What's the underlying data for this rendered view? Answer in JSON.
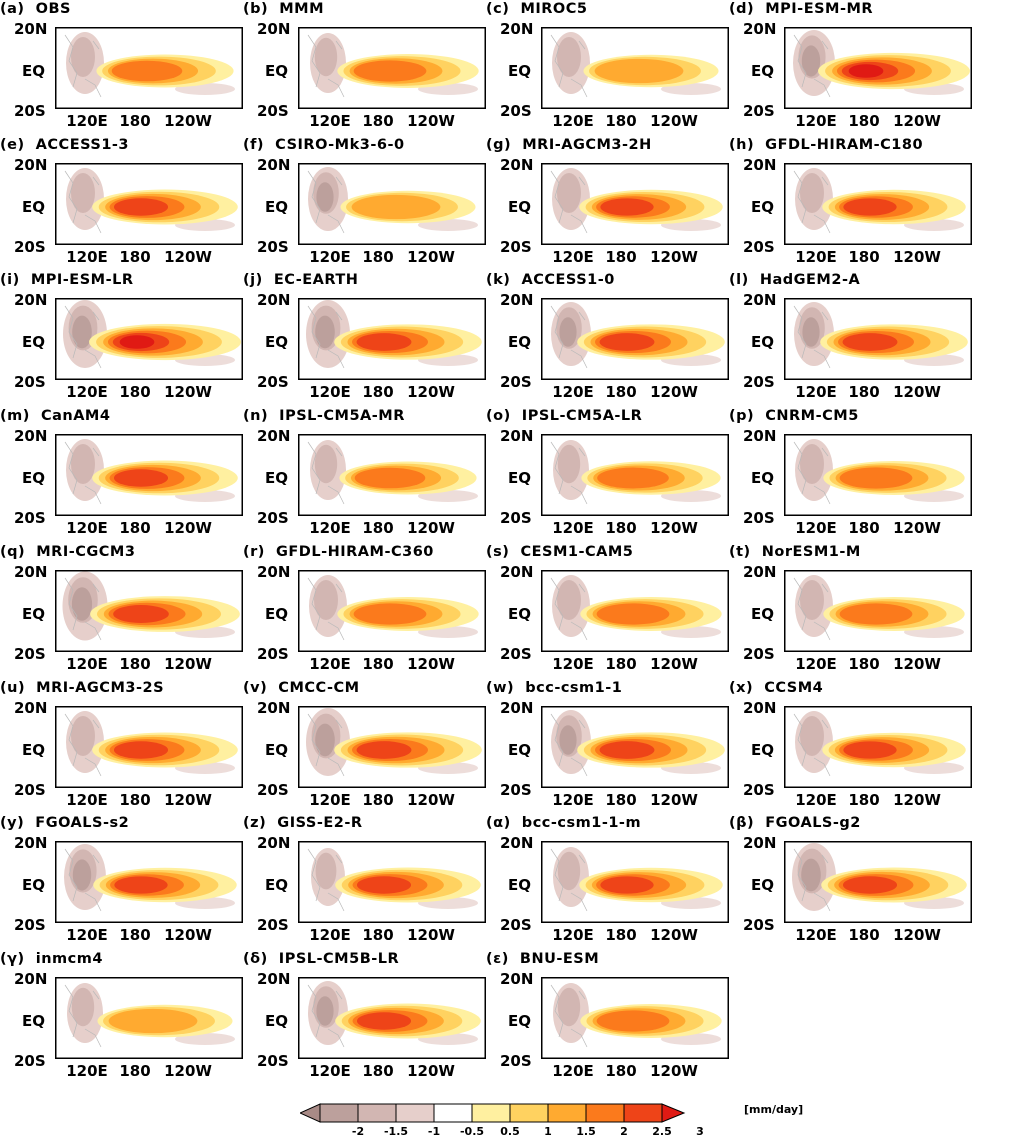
{
  "chart_data": {
    "type": "heatmap",
    "description": "Precipitation anomaly maps over tropical Pacific for observations, multi-model mean and CMIP5 AMIP models",
    "units": "[mm/day]",
    "y_axis": {
      "range": [
        "20S",
        "20N"
      ],
      "tick_labels": [
        "20N",
        "EQ",
        "20S"
      ]
    },
    "x_axis": {
      "tick_labels": [
        "120E",
        "180",
        "120W"
      ]
    },
    "colorbar": {
      "levels": [
        -2,
        -1.5,
        -1,
        -0.5,
        0.5,
        1,
        1.5,
        2,
        2.5,
        3
      ],
      "tick_labels": [
        "-2",
        "-1.5",
        "-1",
        "-0.5",
        "0.5",
        "1",
        "1.5",
        "2",
        "2.5",
        "3"
      ],
      "colors": [
        "#a88a86",
        "#bca09c",
        "#d2b6b2",
        "#e6cfcb",
        "#ffffff",
        "#fff0a0",
        "#ffd260",
        "#ffaa30",
        "#fb7a1c",
        "#ee4418",
        "#e01a14"
      ]
    },
    "panels": [
      {
        "label": "(a)",
        "name": "OBS",
        "intensity": 0.6,
        "west": 0.5
      },
      {
        "label": "(b)",
        "name": "MMM",
        "intensity": 0.7,
        "west": 0.4
      },
      {
        "label": "(c)",
        "name": "MIROC5",
        "intensity": 0.55,
        "west": 0.5
      },
      {
        "label": "(d)",
        "name": "MPI-ESM-MR",
        "intensity": 0.95,
        "west": 0.7
      },
      {
        "label": "(e)",
        "name": "ACCESS1-3",
        "intensity": 0.8,
        "west": 0.5
      },
      {
        "label": "(f)",
        "name": "CSIRO-Mk3-6-0",
        "intensity": 0.55,
        "west": 0.6
      },
      {
        "label": "(g)",
        "name": "MRI-AGCM3-2H",
        "intensity": 0.75,
        "west": 0.5
      },
      {
        "label": "(h)",
        "name": "GFDL-HIRAM-C180",
        "intensity": 0.75,
        "west": 0.5
      },
      {
        "label": "(i)",
        "name": "MPI-ESM-LR",
        "intensity": 0.95,
        "west": 0.8
      },
      {
        "label": "(j)",
        "name": "EC-EARTH",
        "intensity": 0.85,
        "west": 0.8
      },
      {
        "label": "(k)",
        "name": "ACCESS1-0",
        "intensity": 0.85,
        "west": 0.6
      },
      {
        "label": "(l)",
        "name": "HadGEM2-A",
        "intensity": 0.85,
        "west": 0.6
      },
      {
        "label": "(m)",
        "name": "CanAM4",
        "intensity": 0.8,
        "west": 0.5
      },
      {
        "label": "(n)",
        "name": "IPSL-CM5A-MR",
        "intensity": 0.6,
        "west": 0.4
      },
      {
        "label": "(o)",
        "name": "IPSL-CM5A-LR",
        "intensity": 0.65,
        "west": 0.4
      },
      {
        "label": "(p)",
        "name": "CNRM-CM5",
        "intensity": 0.7,
        "west": 0.5
      },
      {
        "label": "(q)",
        "name": "MRI-CGCM3",
        "intensity": 0.9,
        "west": 0.85
      },
      {
        "label": "(r)",
        "name": "GFDL-HIRAM-C360",
        "intensity": 0.7,
        "west": 0.5
      },
      {
        "label": "(s)",
        "name": "CESM1-CAM5",
        "intensity": 0.7,
        "west": 0.5
      },
      {
        "label": "(t)",
        "name": "NorESM1-M",
        "intensity": 0.7,
        "west": 0.5
      },
      {
        "label": "(u)",
        "name": "MRI-AGCM3-2S",
        "intensity": 0.8,
        "west": 0.5
      },
      {
        "label": "(v)",
        "name": "CMCC-CM",
        "intensity": 0.85,
        "west": 0.8
      },
      {
        "label": "(w)",
        "name": "bcc-csm1-1",
        "intensity": 0.85,
        "west": 0.6
      },
      {
        "label": "(x)",
        "name": "CCSM4",
        "intensity": 0.75,
        "west": 0.5
      },
      {
        "label": "(y)",
        "name": "FGOALS-s2",
        "intensity": 0.75,
        "west": 0.7
      },
      {
        "label": "(z)",
        "name": "GISS-E2-R",
        "intensity": 0.8,
        "west": 0.3
      },
      {
        "label": "(α)",
        "name": "bcc-csm1-1-m",
        "intensity": 0.75,
        "west": 0.4
      },
      {
        "label": "(β)",
        "name": "FGOALS-g2",
        "intensity": 0.8,
        "west": 0.8
      },
      {
        "label": "(γ)",
        "name": "inmcm4",
        "intensity": 0.55,
        "west": 0.4
      },
      {
        "label": "(δ)",
        "name": "IPSL-CM5B-LR",
        "intensity": 0.8,
        "west": 0.6
      },
      {
        "label": "(ε)",
        "name": "BNU-ESM",
        "intensity": 0.7,
        "west": 0.4
      }
    ]
  }
}
